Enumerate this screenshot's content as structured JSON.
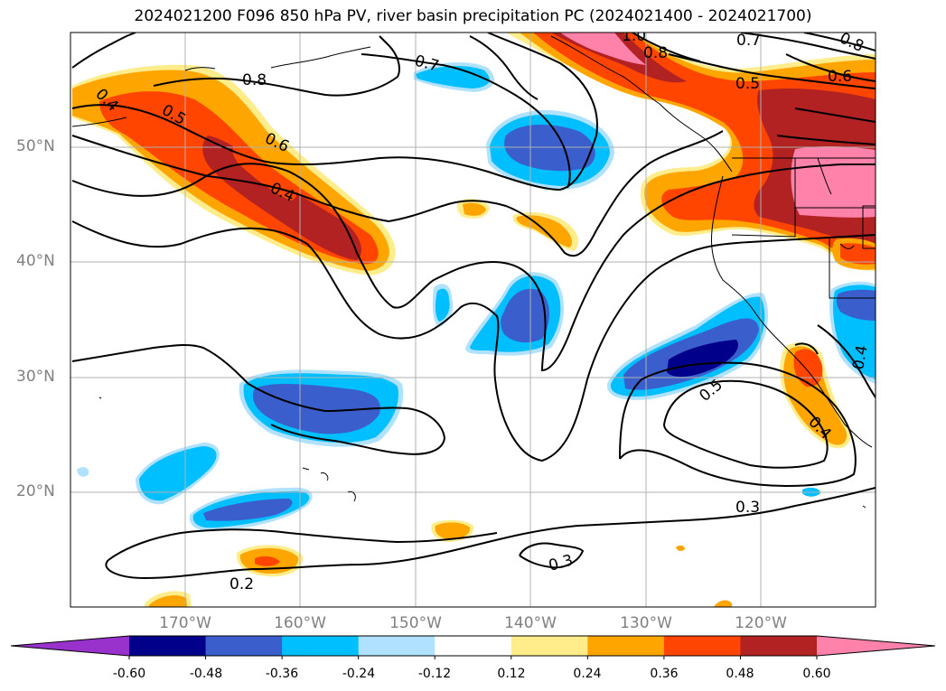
{
  "title": "2024021200 F096 850 hPa PV, river basin precipitation PC (2024021400 - 2024021700)",
  "lat_labels": [
    "50°N",
    "40°N",
    "30°N",
    "20°N"
  ],
  "lon_labels": [
    "170°W",
    "160°W",
    "150°W",
    "140°W",
    "130°W",
    "120°W"
  ],
  "contour_labels": [
    "0.4",
    "0.5",
    "0.6",
    "0.4",
    "0.8",
    "0.7",
    "1.0",
    "0.8",
    "0.7",
    "0.8",
    "0.5",
    "0.6",
    "0.5",
    "0.3",
    "0.3",
    "0.2",
    "0.4",
    "0.4"
  ],
  "colorbar": {
    "tick_labels": [
      "-0.60",
      "-0.48",
      "-0.36",
      "-0.24",
      "-0.12",
      "0.12",
      "0.24",
      "0.36",
      "0.48",
      "0.60"
    ],
    "colors": [
      "#9932CC",
      "#00008B",
      "#3A5FCD",
      "#00BFFF",
      "#B0E2FF",
      "#FFFFFF",
      "#FFEC8B",
      "#FFA500",
      "#FF4500",
      "#B22222",
      "#FF82AB"
    ]
  }
}
